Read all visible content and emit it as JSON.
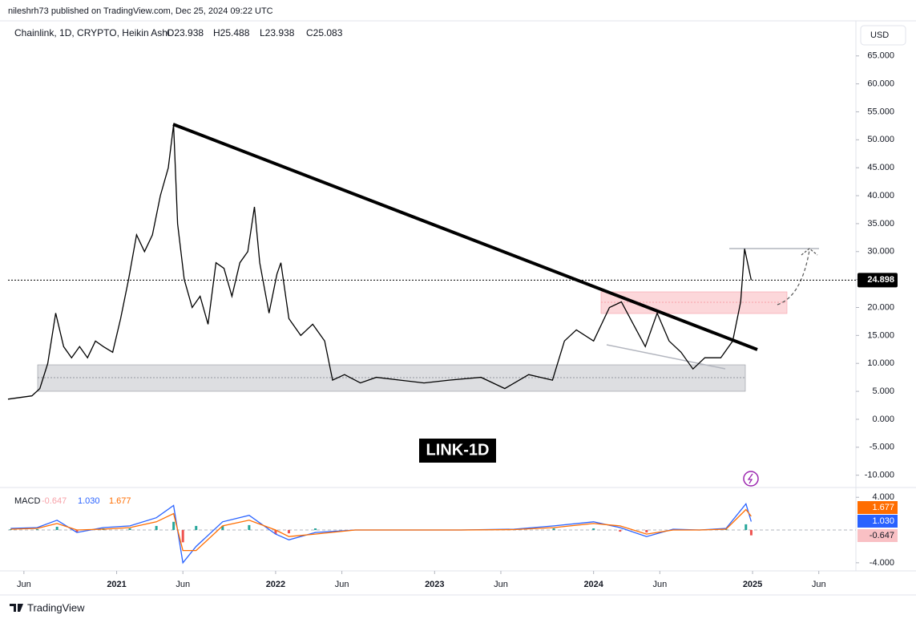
{
  "header": {
    "text": "nileshrh73 published on TradingView.com, Dec 25, 2024 09:22 UTC",
    "currency": "USD"
  },
  "footer": {
    "brand": "TradingView"
  },
  "chart_data": [
    {
      "type": "line",
      "title": "LINK-1D",
      "ohlc": [
        {
          "value": 23.938,
          "label": "O23.938"
        },
        {
          "value": 25.488,
          "label": "H25.488"
        },
        {
          "value": 23.938,
          "label": "L23.938"
        },
        {
          "value": 25.083,
          "label": "C25.083"
        }
      ],
      "x": [
        3.8,
        5.6,
        6.2,
        6.8,
        7.4,
        8.0,
        8.6,
        9.2,
        9.8,
        10.4,
        11.0,
        11.7,
        12.3,
        12.9,
        13.5,
        14.1,
        14.7,
        15.3,
        15.9,
        16.3,
        16.6,
        17.1,
        17.7,
        18.3,
        18.9,
        19.5,
        20.1,
        20.7,
        21.3,
        21.9,
        22.4,
        22.8,
        23.5,
        24.1,
        24.4,
        25.0,
        25.9,
        26.8,
        27.7,
        28.3,
        29.2,
        30.4,
        31.6,
        33.4,
        35.2,
        37.1,
        39.5,
        41.3,
        43.1,
        44.9,
        45.8,
        46.7,
        48.0,
        49.2,
        50.1,
        51.0,
        51.9,
        52.8,
        53.7,
        54.6,
        55.5,
        56.4,
        57.6,
        58.5,
        59.1,
        59.4,
        59.9
      ],
      "series": [
        {
          "name": "Chainlink, 1D, CRYPTO, Heikin Ashi",
          "color": "#000000",
          "values": [
            3.6,
            4.2,
            5.5,
            10,
            19,
            13,
            11,
            13,
            11,
            14,
            13,
            12,
            18,
            25,
            33,
            30,
            33,
            40,
            45,
            52.7,
            35,
            25,
            20,
            22,
            17,
            28,
            27,
            22,
            28,
            30,
            38,
            28,
            19,
            26,
            28,
            18,
            15,
            17,
            14,
            7,
            8,
            6.5,
            7.5,
            7,
            6.5,
            7,
            7.5,
            5.5,
            8,
            7,
            14,
            16,
            14,
            20,
            21,
            17,
            13,
            19,
            14,
            12,
            9,
            11,
            11,
            14,
            21,
            30.5,
            24.9
          ]
        }
      ],
      "last_price": 24.898,
      "xlim": [
        3.8,
        67.8
      ],
      "xticks": [
        {
          "value": 5,
          "label": "Jun"
        },
        {
          "value": 12,
          "label": "2021"
        },
        {
          "value": 17,
          "label": "Jun"
        },
        {
          "value": 24,
          "label": "2022"
        },
        {
          "value": 29,
          "label": "Jun"
        },
        {
          "value": 36,
          "label": "2023"
        },
        {
          "value": 41,
          "label": "Jun"
        },
        {
          "value": 48,
          "label": "2024"
        },
        {
          "value": 53,
          "label": "Jun"
        },
        {
          "value": 60,
          "label": "2025"
        },
        {
          "value": 65,
          "label": "Jun"
        }
      ],
      "ylim": [
        -12.2,
        70.7
      ],
      "yticks": [
        {
          "value": 65,
          "label": "65.000"
        },
        {
          "value": 60,
          "label": "60.000"
        },
        {
          "value": 55,
          "label": "55.000"
        },
        {
          "value": 50,
          "label": "50.000"
        },
        {
          "value": 45,
          "label": "45.000"
        },
        {
          "value": 40,
          "label": "40.000"
        },
        {
          "value": 35,
          "label": "35.000"
        },
        {
          "value": 30,
          "label": "30.000"
        },
        {
          "value": 25,
          "label": "25.000"
        },
        {
          "value": 20,
          "label": "20.000"
        },
        {
          "value": 15,
          "label": "15.000"
        },
        {
          "value": 10,
          "label": "10.000"
        },
        {
          "value": 5,
          "label": "5.000"
        },
        {
          "value": 0,
          "label": "0.000"
        },
        {
          "value": -5,
          "label": "-5.000"
        },
        {
          "value": -10,
          "label": "-10.000"
        }
      ],
      "grid": false
    },
    {
      "type": "macd",
      "title": "MACD",
      "x": [
        4,
        6,
        7.5,
        9,
        11,
        13,
        15,
        16.3,
        17,
        18,
        20,
        22,
        24,
        25,
        27,
        30,
        34,
        38,
        42,
        45,
        48,
        50,
        52,
        54,
        56,
        58,
        59.5,
        59.9
      ],
      "histogram": {
        "up_color": "#26a69a",
        "down_color": "#ef5350",
        "values": [
          0.1,
          0.1,
          0.4,
          -0.3,
          0.2,
          0.2,
          0.5,
          1.0,
          -1.5,
          0.5,
          0.5,
          0.6,
          -0.5,
          -0.4,
          0.2,
          0,
          0,
          0,
          0.05,
          0.2,
          0.2,
          -0.2,
          -0.3,
          0.1,
          0,
          0.1,
          0.7,
          -0.647
        ],
        "last": -0.647
      },
      "macd": {
        "color": "#2962ff",
        "values": [
          0.2,
          0.3,
          1.2,
          -0.3,
          0.3,
          0.5,
          1.5,
          3.0,
          -4.0,
          -2.0,
          1.0,
          1.8,
          -0.5,
          -1.2,
          -0.3,
          0,
          0,
          0,
          0.1,
          0.5,
          1.0,
          0.3,
          -0.8,
          0.1,
          0,
          0.2,
          3.2,
          1.03
        ],
        "last": {
          "value": 1.03,
          "label": "1.030"
        }
      },
      "signal": {
        "color": "#ff6d00",
        "values": [
          0.1,
          0.2,
          0.8,
          0,
          0.1,
          0.3,
          1.0,
          2.0,
          -2.5,
          -2.5,
          0.5,
          1.2,
          0,
          -0.8,
          -0.5,
          0,
          0,
          0,
          0.05,
          0.3,
          0.8,
          0.5,
          -0.5,
          0,
          0,
          0.1,
          2.5,
          1.677
        ],
        "last": 1.677
      },
      "ylim": [
        -4.6,
        5
      ],
      "yticks": [
        {
          "value": 4,
          "label": "4.000"
        },
        {
          "value": -4,
          "label": "-4.000"
        }
      ]
    }
  ]
}
